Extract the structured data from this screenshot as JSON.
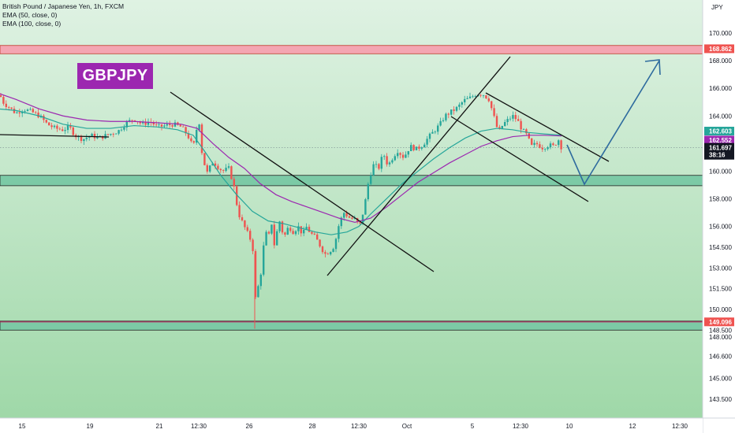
{
  "header": {
    "symbol_line": "British Pound / Japanese Yen, 1h, FXCM",
    "indicators": [
      "EMA (50, close, 0)",
      "EMA (100, close, 0)"
    ]
  },
  "logo_text": "GBPJPY",
  "colors": {
    "bull": "#26a69a",
    "bear": "#ef5350",
    "ema50": "#26a69a",
    "ema100": "#9c27b0",
    "zone_fill": "#9fd8a8",
    "support_zone": "#7ccaa6",
    "resistance_zone": "#f4a6b2",
    "arrow": "#2e6b9e",
    "price_tag": "#131722",
    "ema50_tag": "#26a69a",
    "ema100_tag": "#9c27b0",
    "level_tag": "#ef5350"
  },
  "chart_data": {
    "type": "candlestick",
    "y_unit": "JPY",
    "ylim": [
      143.3,
      171.2
    ],
    "y_ticks": [
      143.5,
      145.0,
      146.6,
      148.0,
      148.5,
      150.0,
      151.5,
      153.0,
      154.5,
      156.0,
      158.0,
      160.0,
      162.0,
      164.0,
      166.0,
      168.0,
      170.0
    ],
    "y_tick_labels": [
      "143.500",
      "145.000",
      "146.600",
      "148.000",
      "148.500",
      "150.000",
      "151.500",
      "153.000",
      "154.500",
      "156.000",
      "158.000",
      "160.000",
      "162.000",
      "164.000",
      "166.000",
      "168.000",
      "170.000"
    ],
    "x_labels": [
      "15",
      "19",
      "21",
      "12:30",
      "26",
      "28",
      "12:30",
      "Oct",
      "5",
      "12:30",
      "10",
      "12",
      "12:30"
    ],
    "current_price": {
      "label": "161.697",
      "countdown": "38:16",
      "value": 161.697
    },
    "ema50_last": {
      "label": "162.603",
      "value": 162.603
    },
    "ema100_last": {
      "label": "162.552",
      "value": 162.552
    },
    "resistance_level": {
      "label": "168.862",
      "value": 168.862
    },
    "support_level": {
      "label": "149.096",
      "value": 149.096
    },
    "price_path": [
      [
        0,
        165.5
      ],
      [
        5,
        164.9
      ],
      [
        10,
        164.7
      ],
      [
        20,
        164.2
      ],
      [
        30,
        164.5
      ],
      [
        40,
        164.3
      ],
      [
        50,
        164.0
      ],
      [
        60,
        163.4
      ],
      [
        70,
        163.1
      ],
      [
        80,
        163.0
      ],
      [
        88,
        163.2
      ],
      [
        95,
        162.6
      ],
      [
        105,
        162.3
      ],
      [
        115,
        162.6
      ],
      [
        125,
        162.4
      ],
      [
        140,
        162.7
      ],
      [
        150,
        162.9
      ],
      [
        160,
        163.5
      ],
      [
        170,
        163.8
      ],
      [
        180,
        163.4
      ],
      [
        190,
        163.6
      ],
      [
        200,
        163.2
      ],
      [
        210,
        163.3
      ],
      [
        220,
        163.4
      ],
      [
        230,
        163.2
      ],
      [
        238,
        162.6
      ],
      [
        245,
        161.7
      ],
      [
        252,
        163.9
      ],
      [
        256,
        161.4
      ],
      [
        262,
        159.8
      ],
      [
        270,
        160.7
      ],
      [
        282,
        160.0
      ],
      [
        290,
        160.2
      ],
      [
        296,
        159.1
      ],
      [
        302,
        157.0
      ],
      [
        308,
        156.2
      ],
      [
        314,
        155.5
      ],
      [
        318,
        155.0
      ],
      [
        322,
        154.0
      ],
      [
        324,
        150.8
      ],
      [
        328,
        151.8
      ],
      [
        332,
        153.0
      ],
      [
        336,
        155.8
      ],
      [
        340,
        155.0
      ],
      [
        344,
        156.4
      ],
      [
        348,
        154.6
      ],
      [
        354,
        156.5
      ],
      [
        360,
        155.2
      ],
      [
        366,
        156.0
      ],
      [
        372,
        155.6
      ],
      [
        378,
        156.0
      ],
      [
        384,
        155.4
      ],
      [
        388,
        156.0
      ],
      [
        394,
        155.5
      ],
      [
        400,
        155.2
      ],
      [
        406,
        154.6
      ],
      [
        412,
        154.0
      ],
      [
        418,
        154.2
      ],
      [
        424,
        154.6
      ],
      [
        430,
        156.2
      ],
      [
        436,
        157.0
      ],
      [
        444,
        156.6
      ],
      [
        450,
        156.5
      ],
      [
        456,
        156.0
      ],
      [
        462,
        157.4
      ],
      [
        468,
        159.5
      ],
      [
        474,
        160.5
      ],
      [
        480,
        160.2
      ],
      [
        486,
        161.3
      ],
      [
        492,
        160.4
      ],
      [
        498,
        161.0
      ],
      [
        504,
        161.5
      ],
      [
        512,
        161.0
      ],
      [
        520,
        161.8
      ],
      [
        528,
        161.6
      ],
      [
        536,
        161.9
      ],
      [
        544,
        162.5
      ],
      [
        552,
        163.0
      ],
      [
        558,
        163.4
      ],
      [
        564,
        164.0
      ],
      [
        572,
        164.3
      ],
      [
        580,
        164.6
      ],
      [
        588,
        165.1
      ],
      [
        596,
        165.3
      ],
      [
        604,
        165.6
      ],
      [
        612,
        165.6
      ],
      [
        620,
        165.2
      ],
      [
        626,
        164.0
      ],
      [
        632,
        162.8
      ],
      [
        638,
        163.4
      ],
      [
        644,
        163.7
      ],
      [
        650,
        164.0
      ],
      [
        656,
        163.7
      ],
      [
        662,
        163.0
      ],
      [
        668,
        162.6
      ],
      [
        674,
        161.8
      ],
      [
        680,
        162.0
      ],
      [
        688,
        161.7
      ],
      [
        696,
        161.9
      ],
      [
        702,
        161.8
      ],
      [
        708,
        162.3
      ],
      [
        712,
        161.7
      ]
    ],
    "ema50_path": [
      [
        0,
        164.5
      ],
      [
        20,
        164.4
      ],
      [
        50,
        164.0
      ],
      [
        80,
        163.4
      ],
      [
        110,
        163.1
      ],
      [
        140,
        163.1
      ],
      [
        170,
        163.3
      ],
      [
        200,
        163.2
      ],
      [
        225,
        163.0
      ],
      [
        245,
        162.6
      ],
      [
        260,
        161.4
      ],
      [
        280,
        159.7
      ],
      [
        300,
        158.3
      ],
      [
        320,
        157.1
      ],
      [
        340,
        156.4
      ],
      [
        360,
        156.2
      ],
      [
        380,
        155.9
      ],
      [
        400,
        155.6
      ],
      [
        420,
        155.4
      ],
      [
        440,
        155.6
      ],
      [
        455,
        156.0
      ],
      [
        470,
        156.9
      ],
      [
        490,
        158.0
      ],
      [
        510,
        159.1
      ],
      [
        530,
        160.0
      ],
      [
        550,
        160.9
      ],
      [
        570,
        161.7
      ],
      [
        590,
        162.4
      ],
      [
        610,
        162.9
      ],
      [
        630,
        163.1
      ],
      [
        650,
        163.0
      ],
      [
        670,
        162.8
      ],
      [
        690,
        162.7
      ],
      [
        712,
        162.603
      ]
    ],
    "ema100_path": [
      [
        0,
        165.6
      ],
      [
        20,
        165.2
      ],
      [
        50,
        164.5
      ],
      [
        80,
        164.0
      ],
      [
        110,
        163.7
      ],
      [
        140,
        163.6
      ],
      [
        170,
        163.6
      ],
      [
        200,
        163.5
      ],
      [
        230,
        163.4
      ],
      [
        250,
        163.1
      ],
      [
        270,
        162.0
      ],
      [
        290,
        161.0
      ],
      [
        310,
        160.2
      ],
      [
        330,
        159.1
      ],
      [
        350,
        158.3
      ],
      [
        370,
        157.8
      ],
      [
        390,
        157.4
      ],
      [
        410,
        157.0
      ],
      [
        430,
        156.6
      ],
      [
        450,
        156.3
      ],
      [
        470,
        156.6
      ],
      [
        490,
        157.4
      ],
      [
        510,
        158.3
      ],
      [
        530,
        159.2
      ],
      [
        550,
        159.9
      ],
      [
        570,
        160.6
      ],
      [
        590,
        161.2
      ],
      [
        610,
        161.8
      ],
      [
        630,
        162.2
      ],
      [
        650,
        162.5
      ],
      [
        670,
        162.6
      ],
      [
        690,
        162.6
      ],
      [
        712,
        162.552
      ]
    ]
  }
}
